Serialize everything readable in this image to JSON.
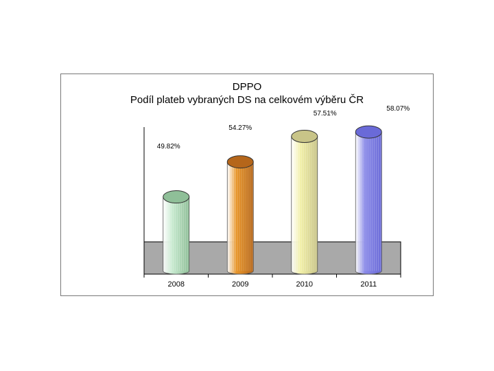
{
  "chart_data": {
    "type": "bar",
    "title": "DPPO",
    "subtitle": "Podíl plateb vybraných DS na celkovém výběru ČR",
    "categories": [
      "2008",
      "2009",
      "2010",
      "2011"
    ],
    "values": [
      49.82,
      54.27,
      57.51,
      58.07
    ],
    "value_labels": [
      "49.82%",
      "54.27%",
      "57.51%",
      "58.07%"
    ],
    "colors": {
      "2008": "#c8ead0",
      "2009": "#e8962a",
      "2010": "#f2f0a8",
      "2011": "#8a8ae8"
    },
    "cap_colors": {
      "2008": "#8fbf98",
      "2009": "#b5661a",
      "2010": "#c8c488",
      "2011": "#6a6ad8"
    },
    "floor_color": "#a9a9a9",
    "style": "3d-cylinder",
    "grid": false,
    "legend": "none"
  }
}
